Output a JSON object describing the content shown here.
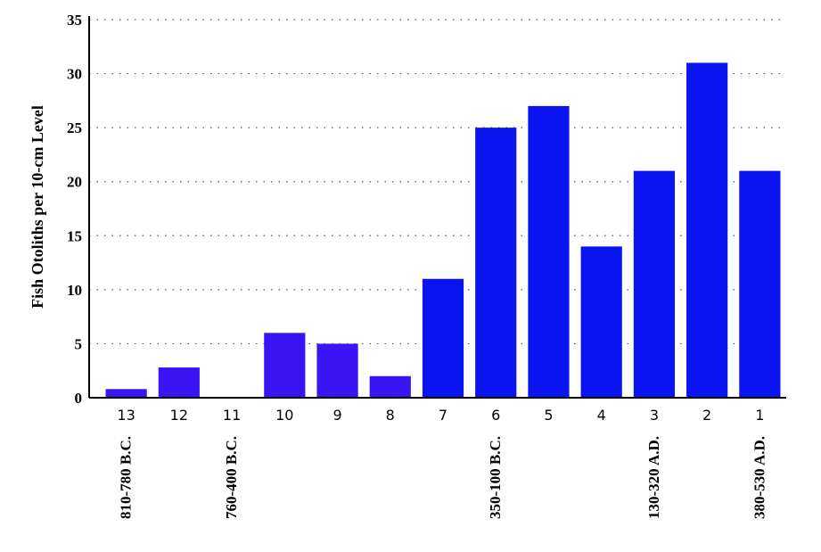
{
  "chart_data": {
    "type": "bar",
    "title": "",
    "xlabel": "",
    "ylabel": "Fish Otoliths per 10-cm Level",
    "ylim": [
      0,
      35
    ],
    "yticks": [
      0,
      5,
      10,
      15,
      20,
      25,
      30,
      35
    ],
    "grid": true,
    "categories": [
      "13",
      "12",
      "11",
      "10",
      "9",
      "8",
      "7",
      "6",
      "5",
      "4",
      "3",
      "2",
      "1"
    ],
    "values": [
      0.8,
      2.8,
      0,
      6,
      5,
      2,
      11,
      25,
      27,
      14,
      21,
      31,
      21
    ],
    "period_labels": [
      {
        "category": "13",
        "text": "810-780 B.C."
      },
      {
        "category": "11",
        "text": "760-400 B.C."
      },
      {
        "category": "6",
        "text": "350-100 B.C."
      },
      {
        "category": "3",
        "text": "130-320 A.D."
      },
      {
        "category": "1",
        "text": "380-530 A.D."
      }
    ],
    "colors": {
      "bar_light": "#3a14f2",
      "bar_dark": "#0a14f0",
      "axis": "#000000",
      "grid": "#555555"
    }
  }
}
